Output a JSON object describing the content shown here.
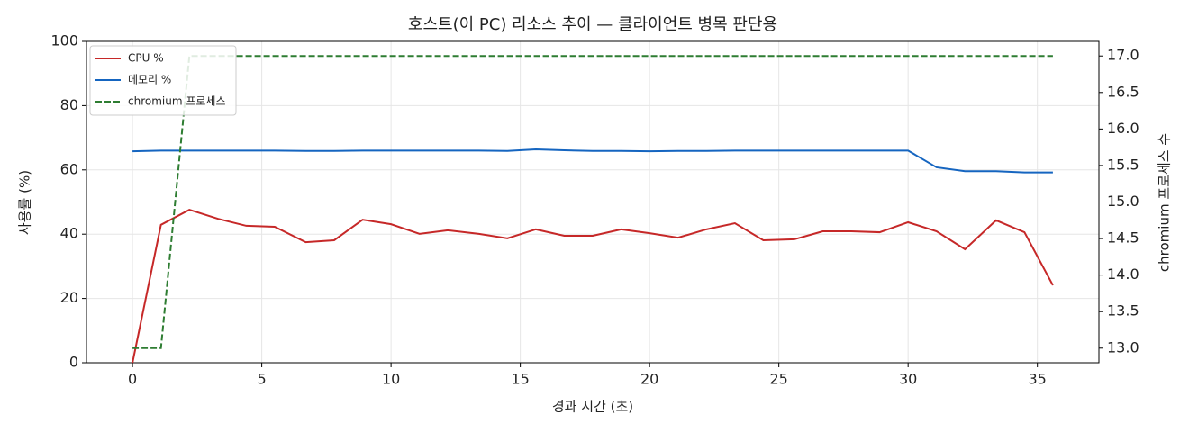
{
  "chart_data": {
    "type": "line",
    "title": "호스트(이 PC) 리소스 추이 — 클라이언트 병목 판단용",
    "x_label": "경과 시간 (초)",
    "y_label": "사용률 (%)",
    "y2_label": "chromium 프로세스 수",
    "x": [
      0,
      1.1,
      2.2,
      3.3,
      4.4,
      5.5,
      6.7,
      7.8,
      8.9,
      10.0,
      11.1,
      12.2,
      13.4,
      14.5,
      15.6,
      16.7,
      17.8,
      18.9,
      20.0,
      21.1,
      22.2,
      23.3,
      24.4,
      25.6,
      26.7,
      27.8,
      28.9,
      30.0,
      31.1,
      32.2,
      33.4,
      34.5,
      35.6
    ],
    "series": [
      {
        "name": "CPU %",
        "color": "#c62828",
        "style": "solid",
        "values": [
          0,
          42.9,
          47.6,
          44.8,
          42.6,
          42.3,
          37.5,
          38.1,
          44.5,
          43.1,
          40.1,
          41.2,
          40.1,
          38.7,
          41.5,
          39.5,
          39.5,
          41.5,
          40.3,
          38.9,
          41.5,
          43.4,
          38.1,
          38.4,
          40.9,
          40.9,
          40.6,
          43.7,
          40.9,
          35.3,
          44.3,
          40.6,
          24.1
        ]
      },
      {
        "name": "메모리 %",
        "color": "#1565c0",
        "style": "solid",
        "values": [
          65.8,
          66,
          66,
          66,
          66,
          66,
          65.9,
          65.9,
          66,
          66,
          66,
          66,
          66,
          65.9,
          66.4,
          66.1,
          65.9,
          65.9,
          65.8,
          65.9,
          65.9,
          66,
          66,
          66,
          66,
          66,
          66,
          66,
          60.8,
          59.6,
          59.6,
          59.2,
          59.2
        ]
      },
      {
        "name": "chromium 프로세스",
        "color": "#2e7d32",
        "style": "dashed",
        "axis": "y2",
        "values": [
          13,
          13,
          17,
          17,
          17,
          17,
          17,
          17,
          17,
          17,
          17,
          17,
          17,
          17,
          17,
          17,
          17,
          17,
          17,
          17,
          17,
          17,
          17,
          17,
          17,
          17,
          17,
          17,
          17,
          17,
          17,
          17,
          17
        ]
      }
    ],
    "xlim": [
      -1.78,
      37.38
    ],
    "xticks": [
      0,
      5,
      10,
      15,
      20,
      25,
      30,
      35
    ],
    "ylim": [
      0,
      100
    ],
    "yticks": [
      0,
      20,
      40,
      60,
      80,
      100
    ],
    "y2lim": [
      12.8,
      17.2
    ],
    "y2ticks": [
      {
        "value": 13,
        "label": "13.0"
      },
      13.5,
      {
        "value": 14,
        "label": "14.0"
      },
      14.5,
      {
        "value": 15,
        "label": "15.0"
      },
      15.5,
      {
        "value": 16,
        "label": "16.0"
      },
      16.5,
      {
        "value": 17,
        "label": "17.0"
      }
    ],
    "grid": true,
    "legend": "upper-left"
  }
}
